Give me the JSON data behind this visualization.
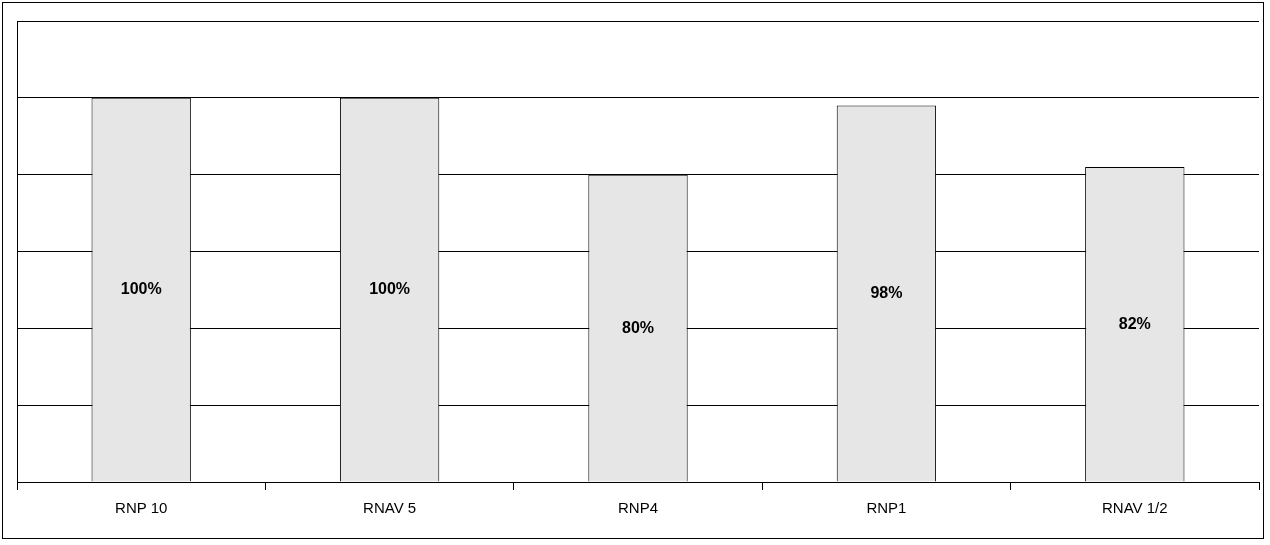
{
  "chart_data": {
    "type": "bar",
    "categories": [
      "RNP 10",
      "RNAV 5",
      "RNP4",
      "RNP1",
      "RNAV 1/2"
    ],
    "values": [
      100,
      100,
      80,
      98,
      82
    ],
    "value_labels": [
      "100%",
      "100%",
      "80%",
      "98%",
      "82%"
    ],
    "color": "#e6e6e6",
    "ylim": [
      0,
      120
    ],
    "yticks": [
      {
        "value": 0,
        "label": null
      },
      {
        "value": 20,
        "label": null
      },
      {
        "value": 40,
        "label": null
      },
      {
        "value": 60,
        "label": null
      },
      {
        "value": 80,
        "label": null
      },
      {
        "value": 100,
        "label": null
      },
      {
        "value": 120,
        "label": null
      }
    ],
    "grid": "y",
    "legend": false,
    "tick_labels": "x"
  }
}
